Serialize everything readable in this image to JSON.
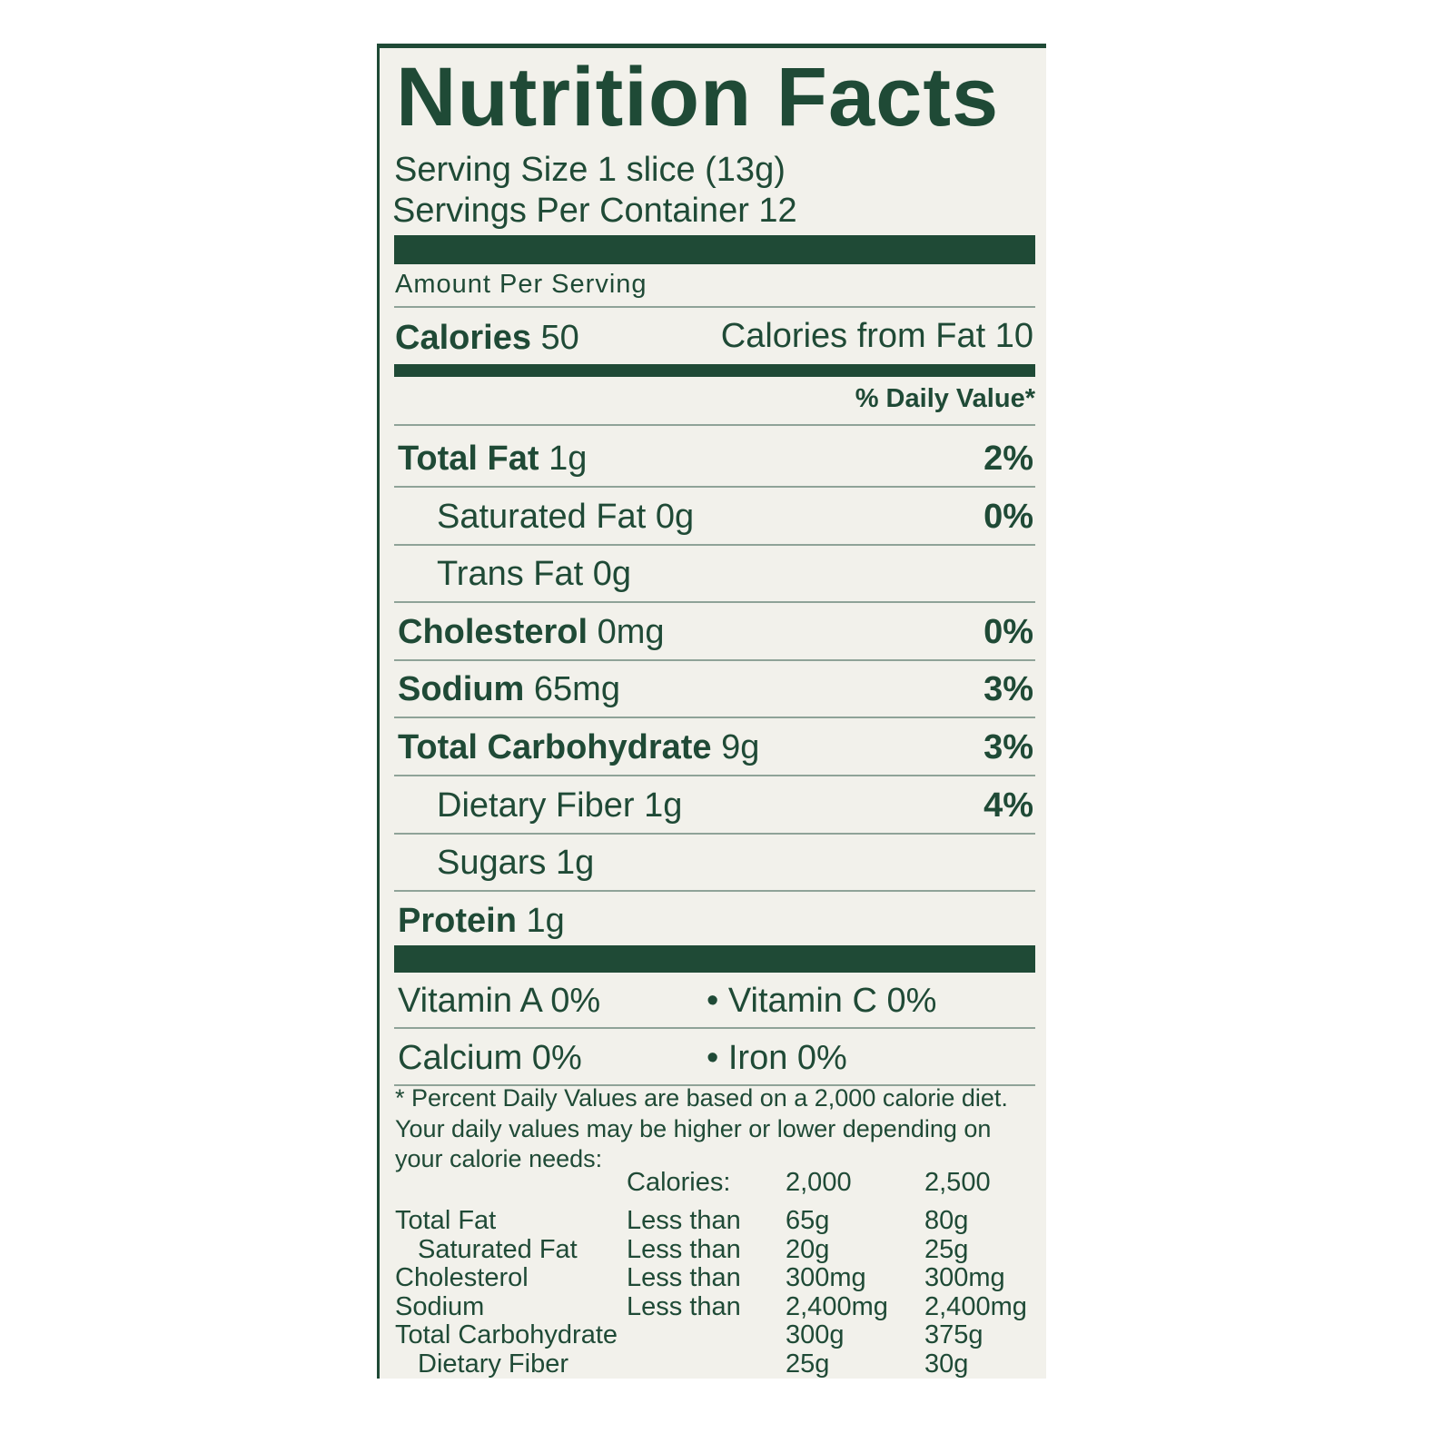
{
  "title": "Nutrition Facts",
  "serving_size": "Serving Size 1 slice (13g)",
  "servings_per_container": "Servings Per Container 12",
  "amount_per_serving": "Amount Per Serving",
  "calories": {
    "label": "Calories",
    "value": "50"
  },
  "calories_from_fat": "Calories from Fat 10",
  "daily_value_header": "% Daily Value*",
  "nutrients": [
    {
      "label": "Total Fat",
      "amount": "1g",
      "dv": "2%"
    },
    {
      "label": "Saturated Fat",
      "amount": "0g",
      "dv": "0%",
      "indent": true
    },
    {
      "label": "Trans Fat",
      "amount": "0g",
      "indent": true
    },
    {
      "label": "Cholesterol",
      "amount": "0mg",
      "dv": "0%"
    },
    {
      "label": "Sodium",
      "amount": "65mg",
      "dv": "3%"
    },
    {
      "label": "Total Carbohydrate",
      "amount": "9g",
      "dv": "3%"
    },
    {
      "label": "Dietary Fiber",
      "amount": "1g",
      "dv": "4%",
      "indent": true
    },
    {
      "label": "Sugars",
      "amount": "1g",
      "indent": true
    },
    {
      "label": "Protein",
      "amount": "1g"
    }
  ],
  "vitamins": [
    [
      "Vitamin A 0%",
      "Vitamin C 0%"
    ],
    [
      "Calcium 0%",
      "Iron 0%"
    ]
  ],
  "footnote": [
    "* Percent Daily Values are based on a 2,000 calorie diet.",
    "Your daily values may be higher or lower depending on",
    "your calorie needs:"
  ],
  "reference_table": {
    "header": [
      "Calories:",
      "2,000",
      "2,500"
    ],
    "rows": [
      {
        "nutrient": "Total Fat",
        "limit": "Less than",
        "values": [
          "65g",
          "80g"
        ]
      },
      {
        "nutrient": "Saturated Fat",
        "indent": true,
        "limit": "Less than",
        "values": [
          "20g",
          "25g"
        ]
      },
      {
        "nutrient": "Cholesterol",
        "limit": "Less than",
        "values": [
          "300mg",
          "300mg"
        ]
      },
      {
        "nutrient": "Sodium",
        "limit": "Less than",
        "values": [
          "2,400mg",
          "2,400mg"
        ]
      },
      {
        "nutrient": "Total Carbohydrate",
        "values": [
          "300g",
          "375g"
        ]
      },
      {
        "nutrient": "Dietary Fiber",
        "indent": true,
        "values": [
          "25g",
          "30g"
        ]
      }
    ]
  }
}
